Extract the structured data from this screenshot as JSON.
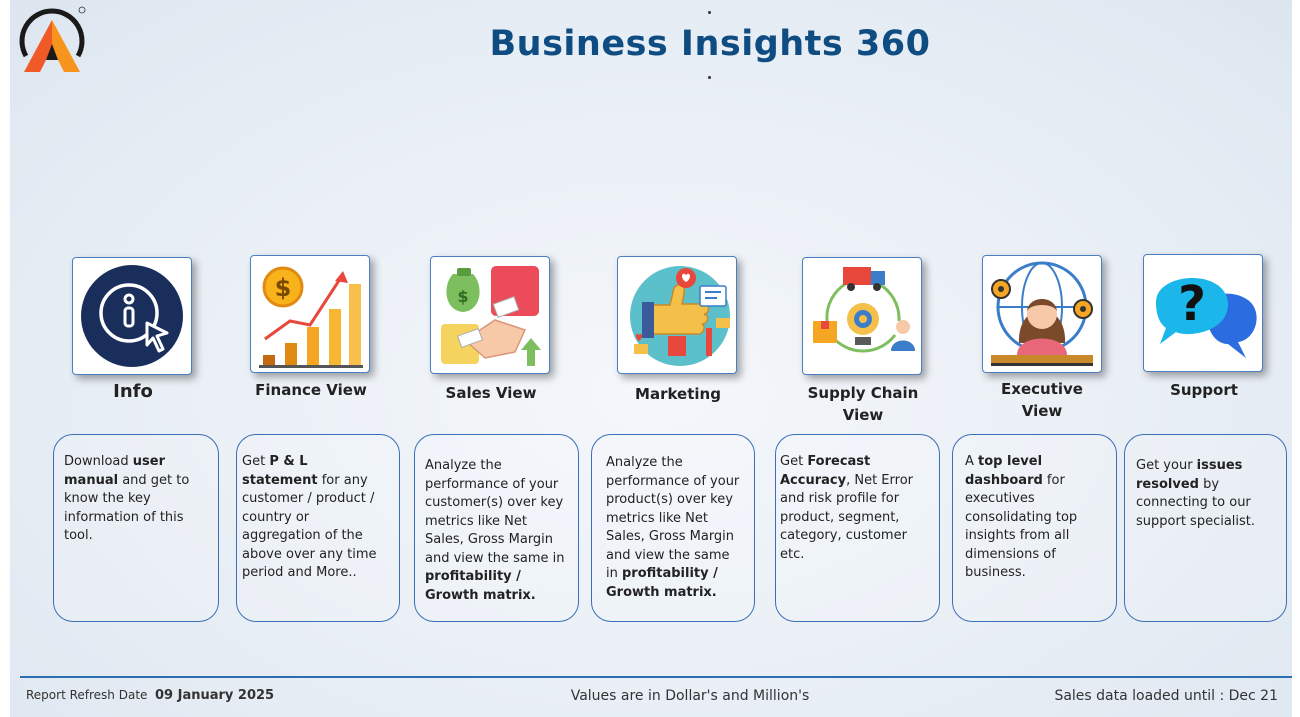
{
  "header": {
    "title": "Business Insights 360",
    "logo_name": "atliq-logo"
  },
  "tiles": [
    {
      "id": "info",
      "label": "Info",
      "icon": "info-pointer-icon"
    },
    {
      "id": "finance",
      "label": "Finance View",
      "icon": "finance-chart-icon"
    },
    {
      "id": "sales",
      "label": "Sales View",
      "icon": "sales-handshake-icon"
    },
    {
      "id": "marketing",
      "label": "Marketing",
      "icon": "marketing-thumbs-up-icon"
    },
    {
      "id": "supply",
      "label_line1": "Supply Chain",
      "label_line2": "View",
      "icon": "supply-chain-icon"
    },
    {
      "id": "executive",
      "label_line1": "Executive",
      "label_line2": "View",
      "icon": "executive-icon"
    },
    {
      "id": "support",
      "label": "Support",
      "icon": "support-question-icon"
    }
  ],
  "descriptions": {
    "info": {
      "t1": "Download ",
      "b1": "user manual",
      "t2": " and get to know the key information of this tool."
    },
    "finance": {
      "t1": "Get  ",
      "b1": "P & L statement",
      "t2": " for any customer / product / country or aggregation of the above over any time period and More.."
    },
    "sales": {
      "t1": "Analyze the performance of your customer(s) over key metrics like Net Sales, Gross Margin and view the same in ",
      "b1": "profitability / Growth matrix."
    },
    "marketing": {
      "t1": "Analyze the performance of your product(s) over key metrics like Net Sales, Gross Margin and view the same in ",
      "b1": "profitability / Growth matrix."
    },
    "supply": {
      "t1": "Get ",
      "b1": "Forecast Accuracy",
      "t2": ", Net Error and risk profile for product, segment, category, customer etc."
    },
    "executive": {
      "t1": "A ",
      "b1": "top level dashboard",
      "t2": " for executives consolidating top insights from all dimensions of business."
    },
    "support": {
      "t1": "Get your ",
      "b1": "issues resolved",
      "t2": " by connecting to our support specialist."
    }
  },
  "footer": {
    "refresh_label": "Report Refresh Date",
    "refresh_date": "09 January 2025",
    "units_note": "Values are in Dollar's and Million's",
    "loaded_label": "Sales data loaded until : Dec 21"
  },
  "colors": {
    "title": "#0f4c81",
    "border": "#3b6fb6",
    "accent_orange": "#f39a2b"
  }
}
